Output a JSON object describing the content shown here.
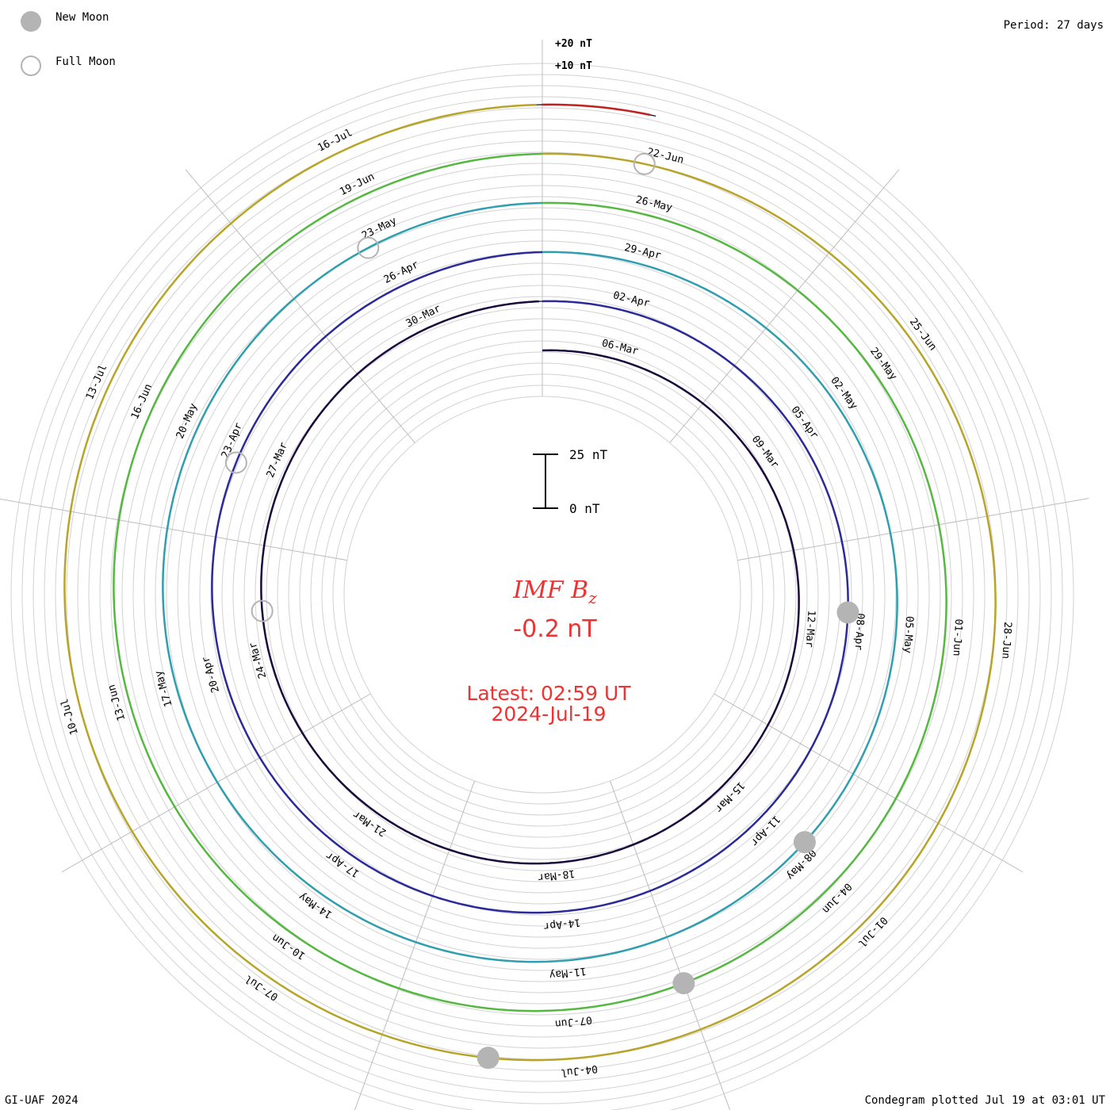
{
  "legend": {
    "new_moon_label": "New Moon",
    "full_moon_label": "Full Moon",
    "new_moon_color": "#b4b4b4",
    "full_moon_color": "#b4b4b4"
  },
  "period_label": "Period: 27 days",
  "footer": {
    "left": "GI-UAF 2024",
    "right": "Condegram plotted Jul 19 at 03:01 UT"
  },
  "center": {
    "title": "IMF B",
    "title_subscript": "z",
    "value": "-0.2 nT",
    "latest_line1": "Latest: 02:59 UT",
    "latest_line2": "2024-Jul-19",
    "text_color": "#f03232"
  },
  "scale_bar": {
    "top_label": "25 nT",
    "bottom_label": "0 nT"
  },
  "ring_scale": {
    "outer_label": "+20 nT",
    "inner_label": "+10 nT"
  },
  "chart_data": {
    "type": "line",
    "title": "IMF Bz",
    "subtitle": "Condegram, period 27 days",
    "units": "nT",
    "latest_value": -0.2,
    "latest_time": "2024-07-19 02:59 UT",
    "period_days": 27,
    "grid": true,
    "series": [
      {
        "turn": 1,
        "start": "2024-03-05",
        "end": "2024-04-01",
        "color": "#1a0a3c",
        "tick_labels": [
          "06-Mar",
          "09-Mar",
          "12-Mar",
          "15-Mar",
          "18-Mar",
          "21-Mar",
          "24-Mar",
          "27-Mar",
          "30-Mar"
        ]
      },
      {
        "turn": 2,
        "start": "2024-04-01",
        "end": "2024-04-28",
        "color": "#2a2a9a",
        "tick_labels": [
          "02-Apr",
          "05-Apr",
          "08-Apr",
          "11-Apr",
          "14-Apr",
          "17-Apr",
          "20-Apr",
          "23-Apr",
          "26-Apr"
        ]
      },
      {
        "turn": 3,
        "start": "2024-04-28",
        "end": "2024-05-25",
        "color": "#2f9fb0",
        "tick_labels": [
          "29-Apr",
          "02-May",
          "05-May",
          "08-May",
          "11-May",
          "14-May",
          "17-May",
          "20-May",
          "23-May"
        ]
      },
      {
        "turn": 4,
        "start": "2024-05-25",
        "end": "2024-06-21",
        "color": "#55b840",
        "tick_labels": [
          "26-May",
          "29-May",
          "01-Jun",
          "04-Jun",
          "07-Jun",
          "10-Jun",
          "13-Jun",
          "16-Jun",
          "19-Jun"
        ]
      },
      {
        "turn": 5,
        "start": "2024-06-21",
        "end": "2024-07-18",
        "color": "#b8a428",
        "tick_labels": [
          "22-Jun",
          "25-Jun",
          "28-Jun",
          "01-Jul",
          "04-Jul",
          "07-Jul",
          "10-Jul",
          "13-Jul",
          "16-Jul"
        ]
      },
      {
        "turn": 6,
        "start": "2024-07-18",
        "end": "2024-07-19",
        "color": "#c02020",
        "tick_labels": []
      }
    ],
    "new_moons": [
      "2024-04-08",
      "2024-05-08",
      "2024-06-06",
      "2024-07-05"
    ],
    "full_moons": [
      "2024-03-25",
      "2024-04-23",
      "2024-05-23",
      "2024-06-22"
    ]
  }
}
